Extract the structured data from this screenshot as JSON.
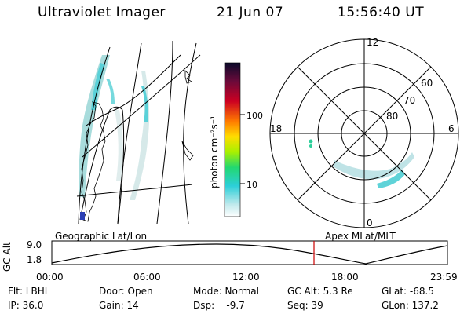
{
  "header": {
    "title": "Ultraviolet Imager",
    "date": "21 Jun 07",
    "time": "15:56:40 UT"
  },
  "colorbar": {
    "unit_label": "photon cm⁻²s⁻¹",
    "ticks": [
      "100",
      "10"
    ]
  },
  "polar": {
    "mlt_labels": [
      "12",
      "6",
      "0",
      "18"
    ],
    "lat_labels": [
      "60",
      "70",
      "80"
    ]
  },
  "projection_labels": {
    "left": "Geographic Lat/Lon",
    "right": "Apex MLat/MLT"
  },
  "gc_alt_plot": {
    "axis_label": "GC Alt",
    "y_ticks": [
      "9.0",
      "1.8"
    ],
    "x_ticks": [
      "00:00",
      "06:00",
      "12:00",
      "18:00",
      "23:59"
    ],
    "marker_color": "#cc0000"
  },
  "footer": {
    "col1": [
      "Flt: LBHL",
      "IP: 36.0"
    ],
    "col2": [
      "Door: Open",
      "Gain: 14"
    ],
    "col3": [
      "Mode: Normal",
      "Dsp:    -9.7"
    ],
    "col4": [
      "GC Alt: 5.3 Re",
      "Seq: 39"
    ],
    "col5": [
      "GLat: -68.5",
      "GLon: 137.2"
    ]
  }
}
